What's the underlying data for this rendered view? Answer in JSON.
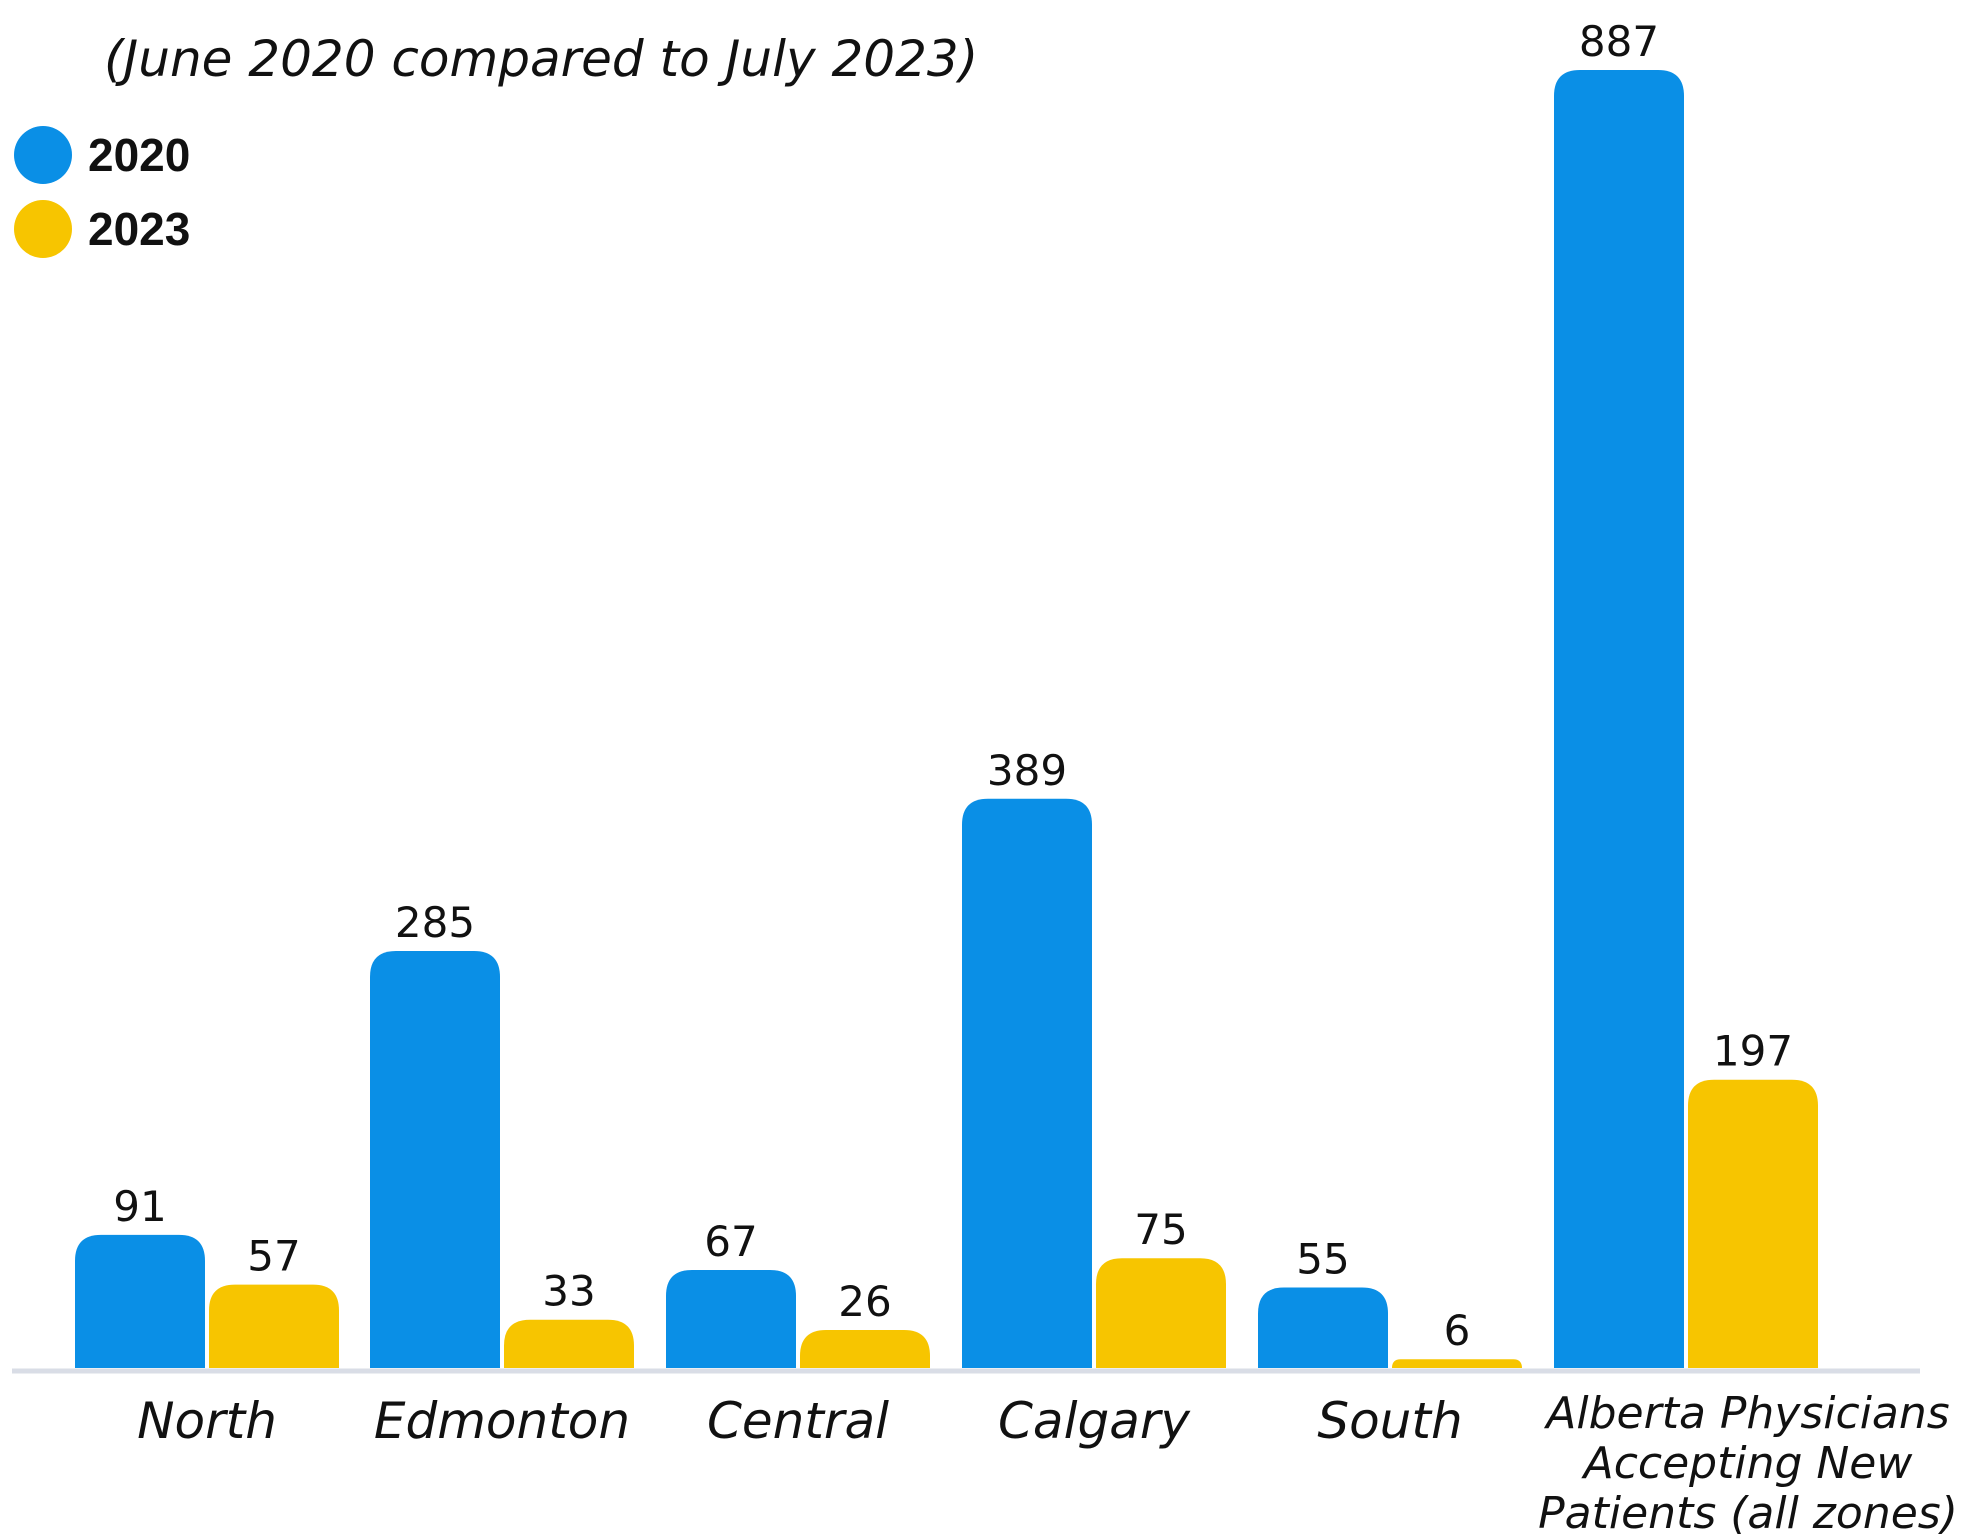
{
  "title_fragment": "",
  "subtitle": "(June 2020 compared to July 2023)",
  "colors": {
    "series_2020": "#0a8fe6",
    "series_2023": "#f7c500",
    "axis": "#d9dde6"
  },
  "legend": [
    {
      "label": "2020",
      "color": "#0a8fe6"
    },
    {
      "label": "2023",
      "color": "#f7c500"
    }
  ],
  "chart_data": {
    "type": "bar",
    "title": "",
    "subtitle": "(June 2020 compared to July 2023)",
    "xlabel": "",
    "ylabel": "",
    "ylim": [
      0,
      887
    ],
    "grid": false,
    "legend_position": "top-left",
    "categories": [
      "North",
      "Edmonton",
      "Central",
      "Calgary",
      "South",
      "Alberta Physicians Accepting New Patients (all zones)"
    ],
    "category_lines": [
      [
        "North"
      ],
      [
        "Edmonton"
      ],
      [
        "Central"
      ],
      [
        "Calgary"
      ],
      [
        "South"
      ],
      [
        "Alberta Physicians",
        "Accepting New",
        "Patients (all zones)"
      ]
    ],
    "series": [
      {
        "name": "2020",
        "values": [
          91,
          285,
          67,
          389,
          55,
          887
        ]
      },
      {
        "name": "2023",
        "values": [
          57,
          33,
          26,
          75,
          6,
          197
        ]
      }
    ]
  }
}
